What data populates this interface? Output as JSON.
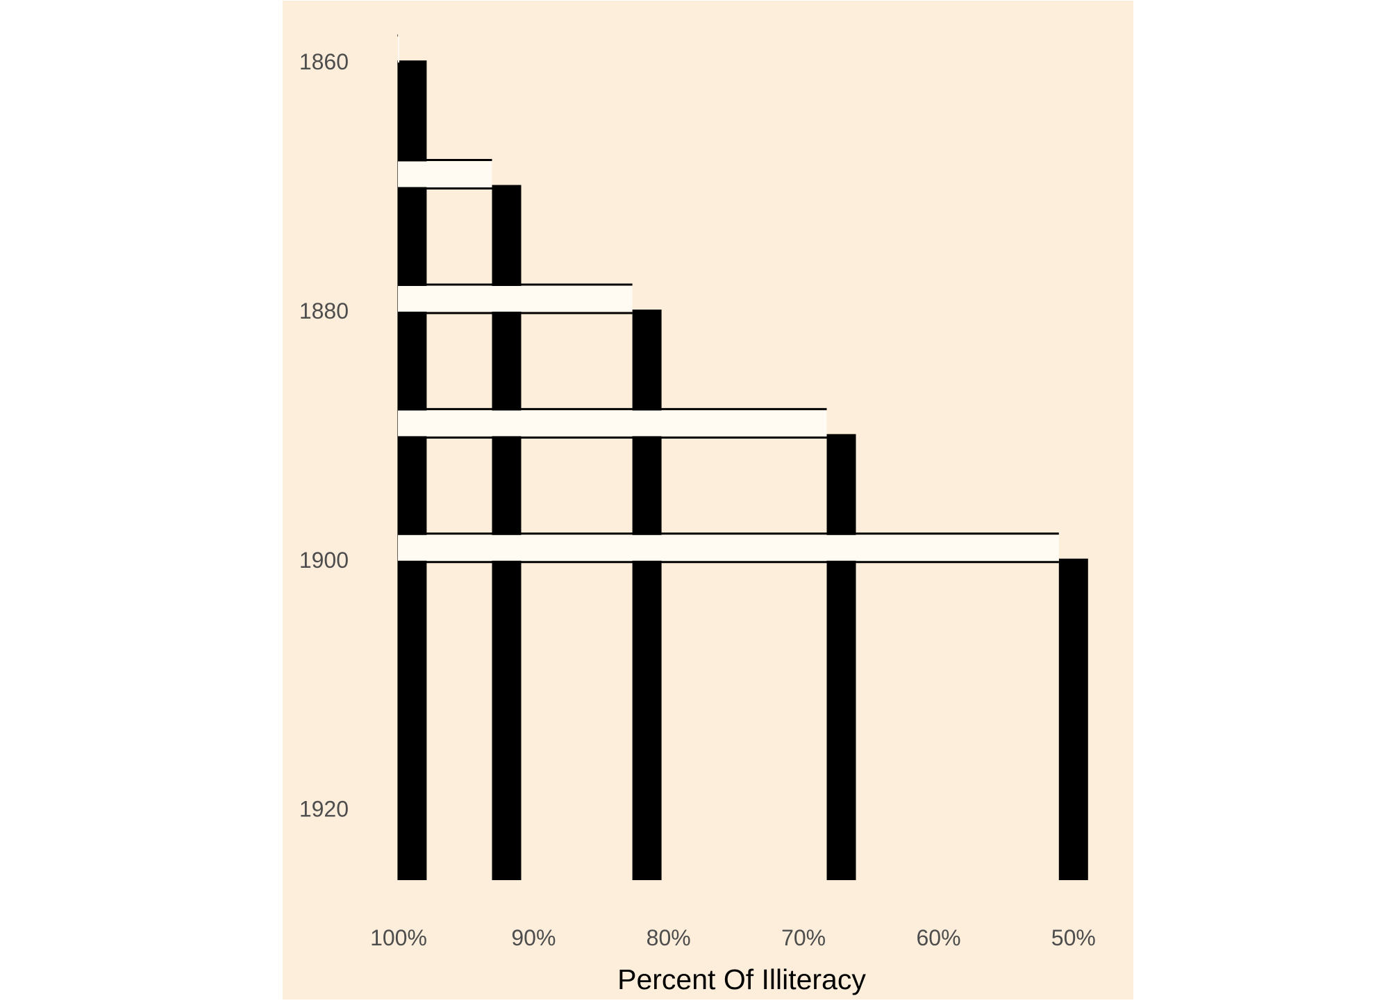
{
  "chart_data": {
    "type": "bar",
    "title": "",
    "xlabel": "Percent Of Illiteracy",
    "ylabel": "",
    "xlim": [
      100,
      48.5
    ],
    "ylim": [
      1857.6,
      1925.7
    ],
    "x_ticks": [
      {
        "value": 100,
        "label": "100%"
      },
      {
        "value": 90,
        "label": "90%"
      },
      {
        "value": 80,
        "label": "80%"
      },
      {
        "value": 70,
        "label": "70%"
      },
      {
        "value": 60,
        "label": "60%"
      },
      {
        "value": 50,
        "label": "50%"
      }
    ],
    "y_ticks": [
      {
        "value": 1860,
        "label": "1860"
      },
      {
        "value": 1880,
        "label": "1880"
      },
      {
        "value": 1900,
        "label": "1900"
      },
      {
        "value": 1920,
        "label": "1920"
      }
    ],
    "series": [
      {
        "x": [
          1860,
          1870,
          1880,
          1890,
          1900
        ],
        "values": [
          99,
          92,
          81.6,
          67.2,
          50
        ]
      }
    ],
    "grid": false,
    "legend": "none",
    "colors": {
      "background": "#fdeedb",
      "bar": "#000000",
      "ribbon": "#fffbf2",
      "tick_text": "#4d4d4d",
      "title_text": "#000000"
    }
  }
}
